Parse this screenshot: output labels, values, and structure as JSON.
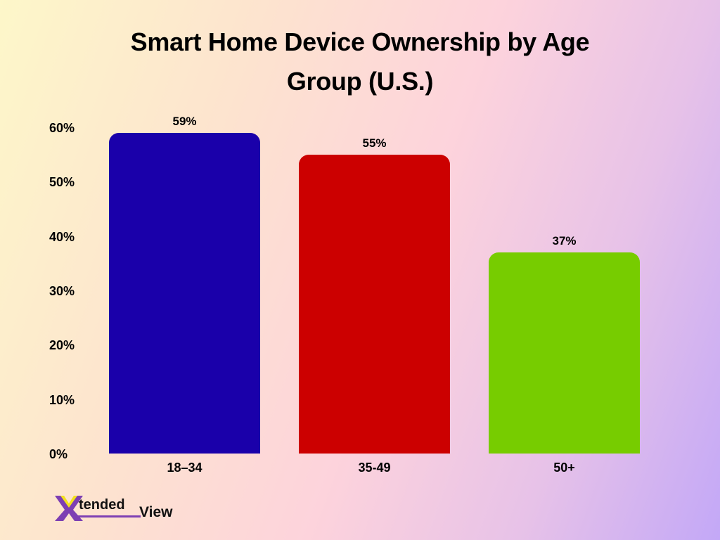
{
  "title": {
    "line1": "Smart Home Device Ownership by Age",
    "line2": "Group (U.S.)"
  },
  "y_axis": {
    "ticks": [
      "0%",
      "10%",
      "20%",
      "30%",
      "40%",
      "50%",
      "60%"
    ]
  },
  "bars": [
    {
      "category": "18–34",
      "value": 59,
      "label": "59%",
      "color": "#1a00aa"
    },
    {
      "category": "35-49",
      "value": 55,
      "label": "55%",
      "color": "#cc0000"
    },
    {
      "category": "50+",
      "value": 37,
      "label": "37%",
      "color": "#77cc00"
    }
  ],
  "logo": {
    "part1": "tended",
    "part2": "View"
  },
  "chart_data": {
    "type": "bar",
    "title": "Smart Home Device Ownership by Age Group (U.S.)",
    "categories": [
      "18–34",
      "35-49",
      "50+"
    ],
    "values": [
      59,
      55,
      37
    ],
    "data_labels": [
      "59%",
      "55%",
      "37%"
    ],
    "colors": [
      "#1a00aa",
      "#cc0000",
      "#77cc00"
    ],
    "xlabel": "",
    "ylabel": "",
    "ylim": [
      0,
      60
    ],
    "yticks": [
      "0%",
      "10%",
      "20%",
      "30%",
      "40%",
      "50%",
      "60%"
    ],
    "grid": false,
    "legend": null
  }
}
